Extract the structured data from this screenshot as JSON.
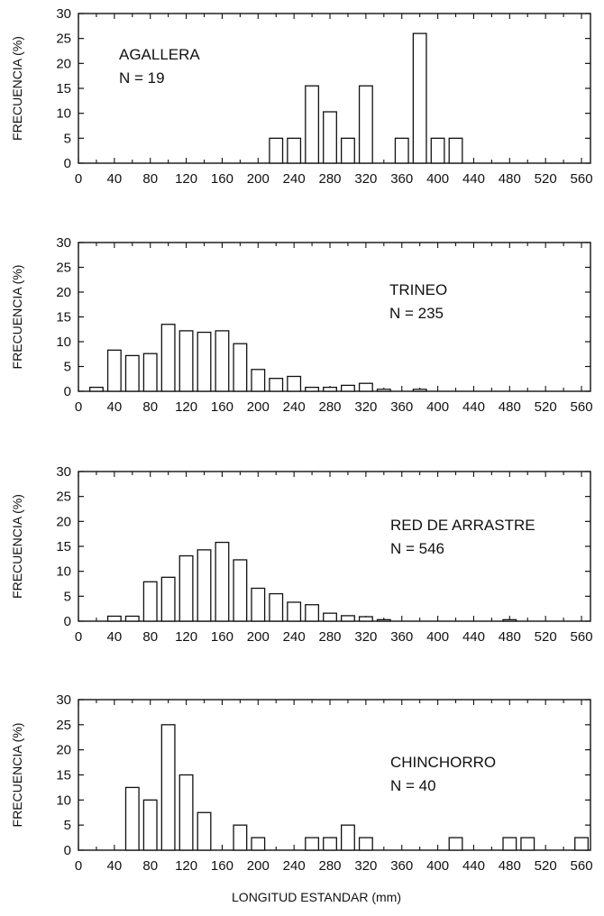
{
  "chart_data": [
    {
      "type": "bar",
      "annotation": [
        "AGALLERA",
        "N = 19"
      ],
      "ylabel": "FRECUENCIA (%)",
      "xlabel": "",
      "ylim": [
        0,
        30
      ],
      "xlim": [
        0,
        570
      ],
      "yticks": [
        0,
        5,
        10,
        15,
        20,
        25,
        30
      ],
      "xticks": [
        0,
        40,
        80,
        120,
        160,
        200,
        240,
        280,
        320,
        360,
        400,
        440,
        480,
        520,
        560
      ],
      "x": [
        220,
        240,
        260,
        280,
        300,
        320,
        360,
        380,
        400,
        420
      ],
      "values": [
        5,
        5,
        15.5,
        10.3,
        5,
        15.5,
        5,
        26,
        5,
        5
      ]
    },
    {
      "type": "bar",
      "annotation": [
        "TRINEO",
        "N = 235"
      ],
      "ylabel": "FRECUENCIA (%)",
      "xlabel": "",
      "ylim": [
        0,
        30
      ],
      "xlim": [
        0,
        570
      ],
      "yticks": [
        0,
        5,
        10,
        15,
        20,
        25,
        30
      ],
      "xticks": [
        0,
        40,
        80,
        120,
        160,
        200,
        240,
        280,
        320,
        360,
        400,
        440,
        480,
        520,
        560
      ],
      "x": [
        20,
        40,
        60,
        80,
        100,
        120,
        140,
        160,
        180,
        200,
        220,
        240,
        260,
        280,
        300,
        320,
        340,
        380
      ],
      "values": [
        0.8,
        8.3,
        7.2,
        7.6,
        13.5,
        12.2,
        11.9,
        12.2,
        9.6,
        4.4,
        2.6,
        3.0,
        0.8,
        0.8,
        1.2,
        1.6,
        0.4,
        0.4
      ]
    },
    {
      "type": "bar",
      "annotation": [
        "RED DE ARRASTRE",
        "N = 546"
      ],
      "ylabel": "FRECUENCIA (%)",
      "xlabel": "",
      "ylim": [
        0,
        30
      ],
      "xlim": [
        0,
        570
      ],
      "yticks": [
        0,
        5,
        10,
        15,
        20,
        25,
        30
      ],
      "xticks": [
        0,
        40,
        80,
        120,
        160,
        200,
        240,
        280,
        320,
        360,
        400,
        440,
        480,
        520,
        560
      ],
      "x": [
        40,
        60,
        80,
        100,
        120,
        140,
        160,
        180,
        200,
        220,
        240,
        260,
        280,
        300,
        320,
        340,
        480
      ],
      "values": [
        1.0,
        1.0,
        7.9,
        8.8,
        13.1,
        14.3,
        15.8,
        12.3,
        6.6,
        5.5,
        3.8,
        3.3,
        1.6,
        1.1,
        0.9,
        0.3,
        0.3
      ]
    },
    {
      "type": "bar",
      "annotation": [
        "CHINCHORRO",
        "N = 40"
      ],
      "ylabel": "FRECUENCIA (%)",
      "xlabel": "LONGITUD ESTANDAR (mm)",
      "ylim": [
        0,
        30
      ],
      "xlim": [
        0,
        570
      ],
      "yticks": [
        0,
        5,
        10,
        15,
        20,
        25,
        30
      ],
      "xticks": [
        0,
        40,
        80,
        120,
        160,
        200,
        240,
        280,
        320,
        360,
        400,
        440,
        480,
        520,
        560
      ],
      "x": [
        60,
        80,
        100,
        120,
        140,
        180,
        200,
        260,
        280,
        300,
        320,
        420,
        480,
        500,
        560
      ],
      "values": [
        12.5,
        10,
        25,
        15,
        7.5,
        5,
        2.5,
        2.5,
        2.5,
        5,
        2.5,
        2.5,
        2.5,
        2.5,
        2.5
      ]
    }
  ]
}
